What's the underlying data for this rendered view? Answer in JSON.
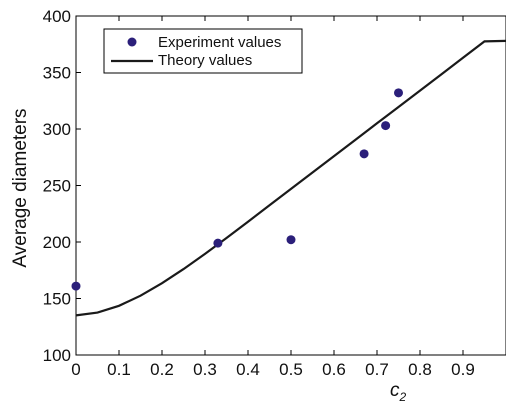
{
  "chart_data": {
    "type": "scatter",
    "xlabel": "c",
    "xlabel_subscript": "2",
    "ylabel": "Average diameters",
    "xlim": [
      0,
      1.0
    ],
    "ylim": [
      100,
      400
    ],
    "x_ticks": [
      0,
      0.1,
      0.2,
      0.3,
      0.4,
      0.5,
      0.6,
      0.7,
      0.8,
      0.9
    ],
    "x_tick_labels": [
      "0",
      "0.1",
      "0.2",
      "0.3",
      "0.4",
      "0.5",
      "0.6",
      "0.7",
      "0.8",
      "0.9"
    ],
    "y_ticks": [
      100,
      150,
      200,
      250,
      300,
      350,
      400
    ],
    "y_tick_labels": [
      "100",
      "150",
      "200",
      "250",
      "300",
      "350",
      "400"
    ],
    "grid": false,
    "legend_position": "top-left",
    "series": [
      {
        "name": "Experiment values",
        "kind": "scatter",
        "color": "#2b1f7a",
        "x": [
          0.0,
          0.33,
          0.5,
          0.67,
          0.72,
          0.75
        ],
        "y": [
          161,
          199,
          202,
          278,
          303,
          332
        ]
      },
      {
        "name": "Theory values",
        "kind": "line",
        "color": "#1a1a1a",
        "x": [
          0.0,
          0.05,
          0.1,
          0.15,
          0.2,
          0.25,
          0.3,
          0.35,
          0.4,
          0.45,
          0.5,
          0.55,
          0.6,
          0.65,
          0.7,
          0.75,
          0.8,
          0.85,
          0.9,
          0.95,
          1.0
        ],
        "y": [
          135,
          137.5,
          143.5,
          152.5,
          163.5,
          176,
          189.5,
          203.5,
          218,
          232.5,
          247,
          261.5,
          276,
          290.5,
          305,
          319.5,
          334,
          348.5,
          363,
          377.5,
          378
        ]
      }
    ]
  }
}
